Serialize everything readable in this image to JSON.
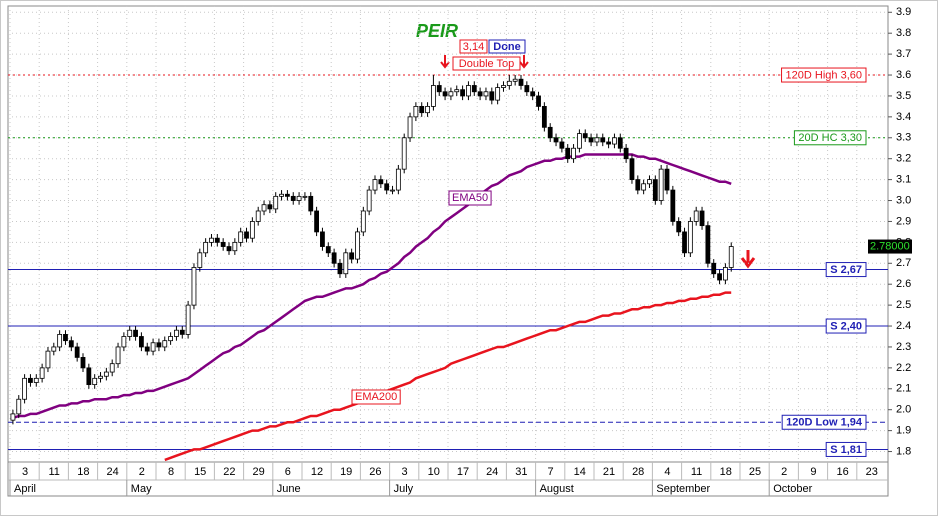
{
  "chart_data": {
    "type": "candlestick",
    "title": "PEIR",
    "price_box": "3,14",
    "status": "Done",
    "pattern": "Double Top",
    "ylim": [
      1.75,
      3.93
    ],
    "yticks": [
      1.8,
      1.9,
      {
        "value": 2,
        "label": "2.0"
      },
      2.1,
      2.2,
      2.3,
      2.4,
      2.5,
      2.6,
      2.7,
      2.8,
      2.9,
      {
        "value": 3,
        "label": "3.0"
      },
      3.1,
      3.2,
      3.3,
      3.4,
      3.5,
      3.6,
      3.7,
      3.8,
      3.9
    ],
    "grid": true,
    "categories": [
      "3",
      null,
      null,
      null,
      null,
      "11",
      null,
      null,
      null,
      null,
      "18",
      null,
      null,
      null,
      null,
      "24",
      null,
      null,
      null,
      null,
      "2",
      null,
      null,
      null,
      null,
      "8",
      null,
      null,
      null,
      null,
      "15",
      null,
      null,
      null,
      null,
      "22",
      null,
      null,
      null,
      null,
      "29",
      null,
      null,
      null,
      null,
      "6",
      null,
      null,
      null,
      null,
      "12",
      null,
      null,
      null,
      null,
      "19",
      null,
      null,
      null,
      null,
      "26",
      null,
      null,
      null,
      null,
      "3",
      null,
      null,
      null,
      null,
      "10",
      null,
      null,
      null,
      null,
      "17",
      null,
      null,
      null,
      null,
      "24",
      null,
      null,
      null,
      null,
      "31",
      null,
      null,
      null,
      null,
      "7",
      null,
      null,
      null,
      null,
      "14",
      null,
      null,
      null,
      null,
      "21",
      null,
      null,
      null,
      null,
      "28",
      null,
      null,
      null,
      null,
      "4",
      null,
      null,
      null,
      null,
      "11",
      null,
      null,
      null,
      null,
      "18",
      null,
      null,
      null,
      null,
      "25",
      null,
      null,
      null,
      null,
      "2",
      null,
      null,
      null,
      null,
      "9",
      null,
      null,
      null,
      null,
      "16",
      null,
      null,
      null,
      null,
      "23",
      null,
      null,
      null,
      null
    ],
    "months": [
      "April",
      null,
      null,
      null,
      null,
      null,
      null,
      null,
      null,
      null,
      null,
      null,
      null,
      null,
      null,
      null,
      null,
      null,
      null,
      null,
      "May",
      null,
      null,
      null,
      null,
      null,
      null,
      null,
      null,
      null,
      null,
      null,
      null,
      null,
      null,
      null,
      null,
      null,
      null,
      null,
      null,
      null,
      null,
      null,
      null,
      "June",
      null,
      null,
      null,
      null,
      null,
      null,
      null,
      null,
      null,
      null,
      null,
      null,
      null,
      null,
      null,
      null,
      null,
      null,
      null,
      "July",
      null,
      null,
      null,
      null,
      null,
      null,
      null,
      null,
      null,
      null,
      null,
      null,
      null,
      null,
      null,
      null,
      null,
      null,
      null,
      null,
      null,
      null,
      null,
      null,
      "August",
      null,
      null,
      null,
      null,
      null,
      null,
      null,
      null,
      null,
      null,
      null,
      null,
      null,
      null,
      null,
      null,
      null,
      null,
      null,
      "September",
      null,
      null,
      null,
      null,
      null,
      null,
      null,
      null,
      null,
      null,
      null,
      null,
      null,
      null,
      null,
      null,
      null,
      null,
      null,
      "October",
      null,
      null,
      null,
      null,
      null,
      null,
      null,
      null,
      null,
      null,
      null,
      null,
      null,
      null,
      null,
      null,
      null,
      null,
      null
    ],
    "open": [
      1.95,
      1.98,
      2.05,
      2.15,
      2.13,
      2.15,
      2.2,
      2.28,
      2.3,
      2.36,
      2.33,
      2.3,
      2.25,
      2.2,
      2.12,
      2.15,
      2.16,
      2.18,
      2.22,
      2.3,
      2.35,
      2.38,
      2.35,
      2.3,
      2.28,
      2.32,
      2.3,
      2.33,
      2.35,
      2.38,
      2.36,
      2.5,
      2.68,
      2.75,
      2.8,
      2.82,
      2.8,
      2.78,
      2.76,
      2.8,
      2.85,
      2.82,
      2.9,
      2.95,
      2.98,
      2.96,
      3.02,
      3.03,
      3.02,
      3.0,
      3.02,
      3.02,
      2.95,
      2.85,
      2.78,
      2.75,
      2.7,
      2.65,
      2.75,
      2.72,
      2.85,
      2.95,
      3.05,
      3.1,
      3.08,
      3.05,
      3.05,
      3.15,
      3.3,
      3.4,
      3.45,
      3.42,
      3.45,
      3.55,
      3.52,
      3.5,
      3.52,
      3.53,
      3.5,
      3.55,
      3.52,
      3.5,
      3.52,
      3.48,
      3.54,
      3.55,
      3.57,
      3.58,
      3.55,
      3.52,
      3.5,
      3.45,
      3.35,
      3.3,
      3.28,
      3.25,
      3.2,
      3.25,
      3.32,
      3.3,
      3.28,
      3.3,
      3.28,
      3.27,
      3.3,
      3.25,
      3.2,
      3.1,
      3.05,
      3.08,
      3.1,
      3.0,
      3.15,
      3.05,
      2.9,
      2.85,
      2.75,
      2.9,
      2.95,
      2.88,
      2.7,
      2.65,
      2.62,
      2.68,
      null,
      null,
      null,
      null,
      null,
      null,
      null,
      null,
      null,
      null,
      null,
      null,
      null,
      null,
      null,
      null,
      null,
      null,
      null,
      null,
      null,
      null,
      null,
      null,
      null,
      null
    ],
    "high": [
      2.0,
      2.07,
      2.17,
      2.17,
      2.17,
      2.22,
      2.3,
      2.32,
      2.38,
      2.38,
      2.35,
      2.32,
      2.27,
      2.22,
      2.17,
      2.18,
      2.2,
      2.24,
      2.32,
      2.37,
      2.4,
      2.4,
      2.37,
      2.32,
      2.34,
      2.34,
      2.35,
      2.37,
      2.4,
      2.4,
      2.52,
      2.7,
      2.77,
      2.82,
      2.84,
      2.84,
      2.82,
      2.8,
      2.82,
      2.87,
      2.87,
      2.92,
      2.97,
      3.0,
      3.0,
      3.04,
      3.05,
      3.05,
      3.04,
      3.04,
      3.04,
      3.04,
      2.97,
      2.87,
      2.8,
      2.77,
      2.72,
      2.77,
      2.77,
      2.87,
      2.97,
      3.07,
      3.12,
      3.12,
      3.1,
      3.07,
      3.17,
      3.32,
      3.42,
      3.47,
      3.47,
      3.47,
      3.6,
      3.57,
      3.54,
      3.54,
      3.55,
      3.55,
      3.57,
      3.57,
      3.54,
      3.54,
      3.54,
      3.56,
      3.57,
      3.6,
      3.6,
      3.6,
      3.57,
      3.54,
      3.52,
      3.47,
      3.37,
      3.32,
      3.3,
      3.27,
      3.27,
      3.34,
      3.34,
      3.32,
      3.32,
      3.32,
      3.3,
      3.32,
      3.32,
      3.27,
      3.22,
      3.12,
      3.1,
      3.12,
      3.12,
      3.17,
      3.17,
      3.07,
      2.92,
      2.87,
      2.92,
      2.97,
      2.97,
      2.9,
      2.72,
      2.67,
      2.7,
      2.8,
      null,
      null,
      null,
      null,
      null,
      null,
      null,
      null,
      null,
      null,
      null,
      null,
      null,
      null,
      null,
      null,
      null,
      null,
      null,
      null,
      null,
      null,
      null,
      null,
      null,
      null
    ],
    "low": [
      1.93,
      1.96,
      2.03,
      2.11,
      2.11,
      2.13,
      2.18,
      2.26,
      2.28,
      2.31,
      2.28,
      2.23,
      2.18,
      2.1,
      2.1,
      2.13,
      2.14,
      2.16,
      2.2,
      2.28,
      2.33,
      2.33,
      2.28,
      2.26,
      2.26,
      2.28,
      2.28,
      2.31,
      2.33,
      2.34,
      2.34,
      2.48,
      2.66,
      2.73,
      2.78,
      2.78,
      2.76,
      2.74,
      2.74,
      2.78,
      2.8,
      2.8,
      2.88,
      2.93,
      2.94,
      2.94,
      3.0,
      3.0,
      2.98,
      2.98,
      3.0,
      2.93,
      2.83,
      2.76,
      2.73,
      2.68,
      2.63,
      2.63,
      2.7,
      2.7,
      2.83,
      2.93,
      3.03,
      3.06,
      3.03,
      3.03,
      3.03,
      3.13,
      3.28,
      3.38,
      3.4,
      3.4,
      3.43,
      3.5,
      3.48,
      3.48,
      3.5,
      3.48,
      3.48,
      3.5,
      3.48,
      3.48,
      3.46,
      3.46,
      3.52,
      3.53,
      3.55,
      3.53,
      3.5,
      3.48,
      3.43,
      3.33,
      3.28,
      3.26,
      3.23,
      3.18,
      3.18,
      3.23,
      3.28,
      3.26,
      3.26,
      3.26,
      3.25,
      3.25,
      3.23,
      3.18,
      3.08,
      3.03,
      3.03,
      3.06,
      2.98,
      2.98,
      3.03,
      2.88,
      2.83,
      2.73,
      2.73,
      2.88,
      2.86,
      2.68,
      2.63,
      2.6,
      2.6,
      2.66,
      null,
      null,
      null,
      null,
      null,
      null,
      null,
      null,
      null,
      null,
      null,
      null,
      null,
      null,
      null,
      null,
      null,
      null,
      null,
      null,
      null,
      null,
      null,
      null,
      null,
      null
    ],
    "close": [
      1.98,
      2.05,
      2.15,
      2.13,
      2.15,
      2.2,
      2.28,
      2.3,
      2.36,
      2.33,
      2.3,
      2.25,
      2.2,
      2.12,
      2.15,
      2.16,
      2.18,
      2.22,
      2.3,
      2.35,
      2.38,
      2.35,
      2.3,
      2.28,
      2.32,
      2.3,
      2.33,
      2.35,
      2.38,
      2.36,
      2.5,
      2.68,
      2.75,
      2.8,
      2.82,
      2.8,
      2.78,
      2.76,
      2.8,
      2.85,
      2.82,
      2.9,
      2.95,
      2.98,
      2.96,
      3.02,
      3.03,
      3.02,
      3.0,
      3.02,
      3.02,
      2.95,
      2.85,
      2.78,
      2.75,
      2.7,
      2.65,
      2.75,
      2.72,
      2.85,
      2.95,
      3.05,
      3.1,
      3.08,
      3.05,
      3.05,
      3.15,
      3.3,
      3.4,
      3.45,
      3.42,
      3.45,
      3.55,
      3.52,
      3.5,
      3.52,
      3.53,
      3.5,
      3.55,
      3.52,
      3.5,
      3.52,
      3.48,
      3.54,
      3.55,
      3.57,
      3.58,
      3.55,
      3.52,
      3.5,
      3.45,
      3.35,
      3.3,
      3.28,
      3.25,
      3.2,
      3.25,
      3.32,
      3.3,
      3.28,
      3.3,
      3.28,
      3.27,
      3.3,
      3.25,
      3.2,
      3.1,
      3.05,
      3.08,
      3.1,
      3.0,
      3.15,
      3.05,
      2.9,
      2.85,
      2.75,
      2.9,
      2.95,
      2.88,
      2.7,
      2.65,
      2.62,
      2.68,
      2.78,
      null,
      null,
      null,
      null,
      null,
      null,
      null,
      null,
      null,
      null,
      null,
      null,
      null,
      null,
      null,
      null,
      null,
      null,
      null,
      null,
      null,
      null,
      null,
      null,
      null,
      null
    ],
    "up_color": "#ffffff",
    "down_color": "#000000",
    "lines": [
      {
        "name": "EMA50",
        "color": "#800080",
        "values": [
          1.96,
          1.97,
          1.97,
          1.98,
          1.98,
          1.99,
          2.0,
          2.01,
          2.02,
          2.02,
          2.03,
          2.03,
          2.04,
          2.04,
          2.05,
          2.05,
          2.05,
          2.06,
          2.06,
          2.07,
          2.07,
          2.08,
          2.08,
          2.09,
          2.09,
          2.1,
          2.11,
          2.12,
          2.13,
          2.14,
          2.15,
          2.17,
          2.19,
          2.21,
          2.23,
          2.25,
          2.27,
          2.28,
          2.3,
          2.31,
          2.33,
          2.35,
          2.37,
          2.38,
          2.4,
          2.42,
          2.44,
          2.46,
          2.48,
          2.5,
          2.52,
          2.53,
          2.54,
          2.54,
          2.55,
          2.56,
          2.57,
          2.58,
          2.58,
          2.59,
          2.6,
          2.62,
          2.63,
          2.65,
          2.66,
          2.68,
          2.7,
          2.73,
          2.75,
          2.78,
          2.8,
          2.82,
          2.85,
          2.87,
          2.9,
          2.92,
          2.94,
          2.96,
          2.98,
          3.01,
          3.03,
          3.05,
          3.07,
          3.08,
          3.1,
          3.12,
          3.13,
          3.14,
          3.16,
          3.17,
          3.18,
          3.19,
          3.19,
          3.2,
          3.2,
          3.21,
          3.21,
          3.21,
          3.22,
          3.22,
          3.22,
          3.22,
          3.22,
          3.22,
          3.22,
          3.22,
          3.22,
          3.21,
          3.21,
          3.2,
          3.2,
          3.19,
          3.18,
          3.17,
          3.16,
          3.15,
          3.14,
          3.13,
          3.12,
          3.11,
          3.1,
          3.09,
          3.09,
          3.08,
          null,
          null,
          null,
          null,
          null,
          null,
          null,
          null,
          null,
          null,
          null,
          null,
          null,
          null,
          null,
          null,
          null,
          null,
          null,
          null,
          null,
          null,
          null,
          null,
          null,
          null
        ]
      },
      {
        "name": "EMA200",
        "color": "#e8141e",
        "values": [
          null,
          null,
          null,
          null,
          null,
          null,
          null,
          null,
          null,
          null,
          null,
          null,
          null,
          null,
          null,
          null,
          null,
          null,
          null,
          null,
          null,
          null,
          null,
          null,
          null,
          null,
          1.76,
          1.77,
          1.78,
          1.79,
          1.8,
          1.81,
          1.81,
          1.82,
          1.83,
          1.84,
          1.85,
          1.86,
          1.87,
          1.88,
          1.89,
          1.9,
          1.9,
          1.91,
          1.92,
          1.92,
          1.93,
          1.94,
          1.94,
          1.95,
          1.96,
          1.97,
          1.97,
          1.98,
          1.99,
          2.0,
          2.0,
          2.01,
          2.02,
          2.03,
          2.04,
          2.05,
          2.06,
          2.08,
          2.09,
          2.1,
          2.11,
          2.12,
          2.13,
          2.15,
          2.16,
          2.17,
          2.18,
          2.19,
          2.2,
          2.22,
          2.23,
          2.24,
          2.25,
          2.26,
          2.27,
          2.28,
          2.29,
          2.3,
          2.3,
          2.31,
          2.32,
          2.33,
          2.34,
          2.35,
          2.36,
          2.37,
          2.38,
          2.38,
          2.39,
          2.4,
          2.41,
          2.42,
          2.42,
          2.43,
          2.44,
          2.45,
          2.45,
          2.46,
          2.46,
          2.47,
          2.48,
          2.48,
          2.49,
          2.49,
          2.5,
          2.5,
          2.51,
          2.51,
          2.52,
          2.52,
          2.53,
          2.53,
          2.54,
          2.54,
          2.55,
          2.55,
          2.56,
          2.56,
          null,
          null,
          null,
          null,
          null,
          null,
          null,
          null,
          null,
          null,
          null,
          null,
          null,
          null,
          null,
          null,
          null,
          null,
          null,
          null,
          null,
          null,
          null,
          null,
          null,
          null
        ]
      }
    ],
    "levels": [
      {
        "label": "120D High 3,60",
        "value": 3.6,
        "color": "#e8141e",
        "style": "dotted"
      },
      {
        "label": "20D HC 3,30",
        "value": 3.3,
        "color": "#1a9a1a",
        "style": "dotted"
      },
      {
        "label": "S 2,67",
        "value": 2.67,
        "color": "#1f1fb4",
        "style": "solid"
      },
      {
        "label": "S 2,40",
        "value": 2.4,
        "color": "#1f1fb4",
        "style": "solid"
      },
      {
        "label": "120D Low 1,94",
        "value": 1.94,
        "color": "#1f1fb4",
        "style": "dashed"
      },
      {
        "label": "S 1,81",
        "value": 1.81,
        "color": "#1f1fb4",
        "style": "solid"
      }
    ],
    "last_price": {
      "value": 2.78,
      "label": "2.78000"
    }
  }
}
